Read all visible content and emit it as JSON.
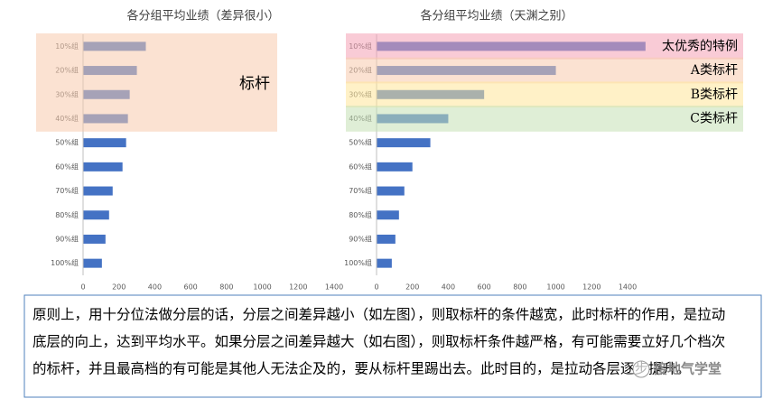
{
  "chart_data": [
    {
      "type": "bar",
      "orientation": "horizontal",
      "title": "各分组平均业绩（差异很小）",
      "categories": [
        "10%组",
        "20%组",
        "30%组",
        "40%组",
        "50%组",
        "60%组",
        "70%组",
        "80%组",
        "90%组",
        "100%组"
      ],
      "values": [
        350,
        300,
        260,
        250,
        240,
        220,
        165,
        145,
        125,
        105
      ],
      "color": "#4472c4",
      "xlim": [
        0,
        1400
      ],
      "xticks": [
        0,
        200,
        400,
        600,
        800,
        1000,
        1200,
        1400
      ],
      "highlights": [
        {
          "span": [
            0,
            3
          ],
          "color": "#f8cbad",
          "label": "标杆"
        }
      ],
      "highlight_opacity": 0.55
    },
    {
      "type": "bar",
      "orientation": "horizontal",
      "title": "各分组平均业绩（天渊之别）",
      "categories": [
        "10%组",
        "20%组",
        "30%组",
        "40%组",
        "50%组",
        "60%组",
        "70%组",
        "80%组",
        "90%组",
        "100%组"
      ],
      "values": [
        1500,
        1000,
        600,
        400,
        300,
        200,
        155,
        125,
        105,
        85
      ],
      "color": "#4472c4",
      "xlim": [
        0,
        1400
      ],
      "xticks": [
        0,
        200,
        400,
        600,
        800,
        1000,
        1200,
        1400
      ],
      "highlights": [
        {
          "span": [
            0,
            0
          ],
          "color": "#f4a0b4",
          "label": "太优秀的特例"
        },
        {
          "span": [
            1,
            1
          ],
          "color": "#f8cbad",
          "label": "A类标杆"
        },
        {
          "span": [
            2,
            2
          ],
          "color": "#ffe699",
          "label": "B类标杆"
        },
        {
          "span": [
            3,
            3
          ],
          "color": "#c5e0b4",
          "label": "C类标杆"
        }
      ],
      "highlight_opacity": 0.55
    }
  ],
  "text": {
    "lines": [
      "原则上，用十分位法做分层的话，分层之间差异越小（如左图），则取标杆的条件越宽，此时标杆的作用，是拉动",
      "底层的向上，达到平均水平。如果分层之间差异越大（如右图），则取标杆条件越严格，有可能需要立好几个档次",
      "的标杆，并且最高档的有可能是其他人无法企及的，要从标杆里踢出去。此时目的，是拉动各层逐步提升。"
    ],
    "watermark": "接地气学堂"
  }
}
